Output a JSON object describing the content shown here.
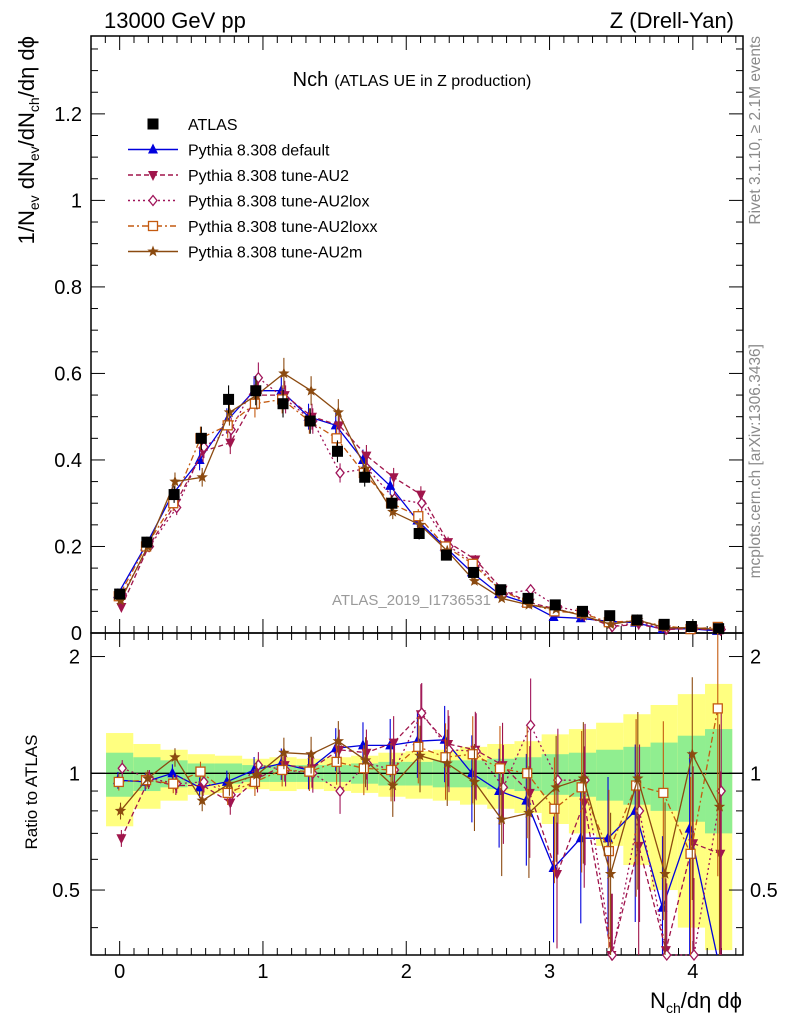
{
  "header": {
    "left": "13000 GeV pp",
    "right": "Z (Drell-Yan)"
  },
  "title": {
    "main": "Nch",
    "sub": "(ATLAS UE in Z production)"
  },
  "side_labels": {
    "rivet": "Rivet 3.1.10, ≥ 2.1M events",
    "mcplots": "mcplots.cern.ch [arXiv:1306.3436]"
  },
  "watermark": "ATLAS_2019_I1736531",
  "axes": {
    "y_main_label": "1/N_ev dN_ch/dN_ch/dη dϕ",
    "y_ratio_label": "Ratio to ATLAS",
    "x_label": "N_ch/dη dϕ"
  },
  "colors": {
    "atlas": "#000000",
    "default": "#0000dd",
    "au2": "#a0154b",
    "au2lox": "#a0155a",
    "au2loxx": "#c45a10",
    "au2m": "#8b4a10",
    "band_inner": "#90ee90",
    "band_outer": "#ffff80"
  },
  "chart_data": {
    "type": "scatter",
    "x": [
      0,
      0.19,
      0.38,
      0.57,
      0.76,
      0.95,
      1.14,
      1.33,
      1.52,
      1.71,
      1.9,
      2.09,
      2.28,
      2.47,
      2.66,
      2.85,
      3.04,
      3.23,
      3.42,
      3.61,
      3.8,
      3.99,
      4.18
    ],
    "xlim": [
      -0.2,
      4.35
    ],
    "ylim": [
      0,
      1.38
    ],
    "ratio_ylim": [
      0.34,
      2.3
    ],
    "x_ticks": [
      "0",
      "1",
      "2",
      "3",
      "4"
    ],
    "y_ticks": [
      "0",
      "0.2",
      "0.4",
      "0.6",
      "0.8",
      "1",
      "1.2"
    ],
    "ratio_ticks": [
      "0.5",
      "1",
      "2"
    ],
    "series": [
      {
        "name": "ATLAS",
        "key": "atlas",
        "values": [
          0.09,
          0.21,
          0.32,
          0.45,
          0.54,
          0.56,
          0.53,
          0.49,
          0.42,
          0.36,
          0.3,
          0.23,
          0.18,
          0.14,
          0.1,
          0.08,
          0.065,
          0.05,
          0.04,
          0.03,
          0.02,
          0.015,
          0.01
        ],
        "ratio": []
      },
      {
        "name": "Pythia 8.308 default",
        "key": "default",
        "values": [
          0.09,
          0.2,
          0.32,
          0.4,
          0.49,
          0.56,
          0.56,
          0.5,
          0.48,
          0.4,
          0.34,
          0.26,
          0.2,
          0.14,
          0.09,
          0.07,
          0.037,
          0.034,
          0.027,
          0.024,
          0.009,
          0.01,
          0.005
        ],
        "ratio": [
          0.96,
          0.95,
          1.0,
          0.92,
          0.95,
          1.02,
          1.06,
          1.02,
          1.16,
          1.18,
          1.18,
          1.21,
          1.22,
          1.0,
          0.9,
          0.85,
          0.57,
          0.68,
          0.68,
          0.8,
          0.45,
          0.72,
          0.2
        ]
      },
      {
        "name": "Pythia 8.308 tune-AU2",
        "key": "au2",
        "values": [
          0.06,
          0.2,
          0.3,
          0.42,
          0.44,
          0.55,
          0.55,
          0.5,
          0.48,
          0.41,
          0.36,
          0.32,
          0.21,
          0.17,
          0.1,
          0.07,
          0.055,
          0.04,
          0.015,
          0.02,
          0.008,
          0.01,
          0.006
        ],
        "ratio": [
          0.68,
          0.96,
          0.93,
          0.93,
          0.84,
          0.97,
          1.05,
          1.03,
          1.15,
          1.13,
          1.2,
          1.42,
          1.19,
          1.15,
          1.05,
          0.89,
          0.55,
          0.84,
          0.34,
          0.65,
          0.35,
          0.66,
          0.62
        ]
      },
      {
        "name": "Pythia 8.308 tune-AU2lox",
        "key": "au2lox",
        "values": [
          0.09,
          0.2,
          0.29,
          0.43,
          0.47,
          0.59,
          0.54,
          0.49,
          0.37,
          0.38,
          0.31,
          0.3,
          0.2,
          0.16,
          0.09,
          0.1,
          0.06,
          0.048,
          0.015,
          0.025,
          0.01,
          0.01,
          0.008
        ],
        "ratio": [
          1.03,
          0.97,
          0.94,
          0.95,
          0.88,
          1.05,
          1.02,
          1.0,
          0.9,
          1.06,
          1.02,
          1.43,
          1.15,
          1.14,
          0.92,
          1.33,
          0.96,
          0.96,
          0.34,
          0.8,
          0.34,
          0.34,
          0.9
        ]
      },
      {
        "name": "Pythia 8.308 tune-AU2loxx",
        "key": "au2loxx",
        "values": [
          0.085,
          0.2,
          0.3,
          0.45,
          0.48,
          0.53,
          0.54,
          0.49,
          0.45,
          0.37,
          0.3,
          0.27,
          0.2,
          0.16,
          0.1,
          0.07,
          0.05,
          0.046,
          0.025,
          0.028,
          0.017,
          0.009,
          0.014
        ],
        "ratio": [
          0.95,
          0.96,
          0.94,
          1.01,
          0.89,
          0.95,
          1.02,
          1.01,
          1.07,
          1.03,
          1.02,
          1.17,
          1.1,
          1.12,
          1.03,
          1.0,
          0.81,
          0.92,
          0.63,
          0.93,
          0.89,
          0.62,
          1.47
        ]
      },
      {
        "name": "Pythia 8.308 tune-AU2m",
        "key": "au2m",
        "values": [
          0.075,
          0.2,
          0.35,
          0.36,
          0.51,
          0.55,
          0.6,
          0.56,
          0.51,
          0.38,
          0.28,
          0.25,
          0.19,
          0.12,
          0.08,
          0.065,
          0.055,
          0.04,
          0.02,
          0.03,
          0.012,
          0.012,
          0.008
        ],
        "ratio": [
          0.8,
          0.97,
          1.1,
          0.85,
          0.94,
          0.99,
          1.13,
          1.12,
          1.21,
          1.08,
          0.93,
          1.11,
          1.06,
          0.95,
          0.76,
          0.79,
          0.92,
          0.97,
          0.55,
          0.97,
          0.55,
          1.12,
          0.82
        ]
      }
    ],
    "ratio_band_inner": [
      0.13,
      0.1,
      0.08,
      0.06,
      0.06,
      0.05,
      0.05,
      0.05,
      0.05,
      0.06,
      0.07,
      0.07,
      0.08,
      0.08,
      0.09,
      0.1,
      0.12,
      0.13,
      0.15,
      0.17,
      0.2,
      0.25,
      0.3
    ],
    "ratio_band_outer": [
      0.27,
      0.19,
      0.15,
      0.12,
      0.11,
      0.09,
      0.1,
      0.09,
      0.1,
      0.11,
      0.13,
      0.14,
      0.15,
      0.17,
      0.19,
      0.21,
      0.26,
      0.3,
      0.35,
      0.42,
      0.5,
      0.6,
      0.7
    ]
  }
}
